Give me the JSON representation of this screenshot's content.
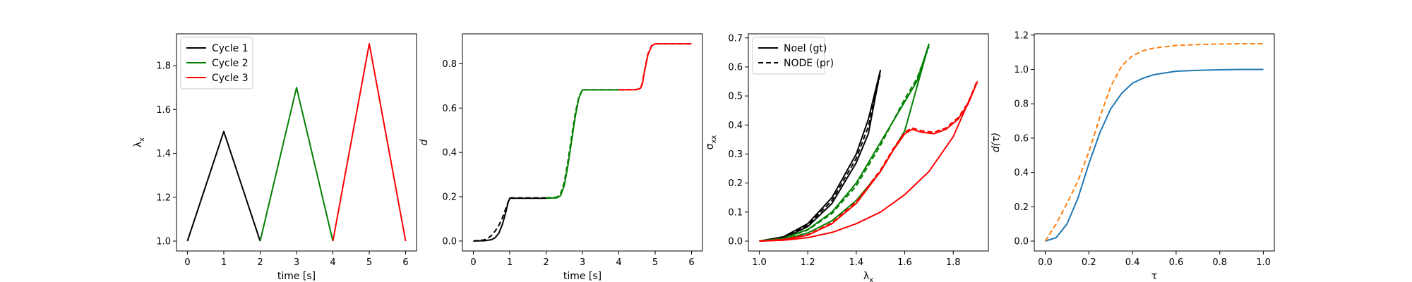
{
  "chart_data": [
    {
      "type": "line",
      "xlabel": "time [s]",
      "ylabel": "λ",
      "ylabel_sub": "x",
      "xlim": [
        -0.3,
        6.3
      ],
      "ylim": [
        0.955,
        1.945
      ],
      "xticks": [
        0,
        1,
        2,
        3,
        4,
        5,
        6
      ],
      "yticks": [
        1.0,
        1.2,
        1.4,
        1.6,
        1.8
      ],
      "ytick_labels": [
        "1.0",
        "1.2",
        "1.4",
        "1.6",
        "1.8"
      ],
      "legend": "top-left",
      "series": [
        {
          "name": "Cycle 1",
          "color": "#000000",
          "style": "solid",
          "x": [
            0,
            1,
            2
          ],
          "y": [
            1.0,
            1.5,
            1.0
          ]
        },
        {
          "name": "Cycle 2",
          "color": "#008000",
          "style": "solid",
          "x": [
            2,
            3,
            4
          ],
          "y": [
            1.0,
            1.7,
            1.0
          ]
        },
        {
          "name": "Cycle 3",
          "color": "#ff0000",
          "style": "solid",
          "x": [
            4,
            5,
            6
          ],
          "y": [
            1.0,
            1.9,
            1.0
          ]
        }
      ]
    },
    {
      "type": "line",
      "xlabel": "time [s]",
      "ylabel": "d",
      "ylabel_italic": true,
      "xlim": [
        -0.3,
        6.3
      ],
      "ylim": [
        -0.045,
        0.935
      ],
      "xticks": [
        0,
        1,
        2,
        3,
        4,
        5,
        6
      ],
      "yticks": [
        0.0,
        0.2,
        0.4,
        0.6,
        0.8
      ],
      "ytick_labels": [
        "0.0",
        "0.2",
        "0.4",
        "0.6",
        "0.8"
      ],
      "legend": "none",
      "series": [
        {
          "color": "#000000",
          "style": "solid",
          "x": [
            0,
            0.3,
            0.5,
            0.6,
            0.7,
            0.8,
            0.9,
            0.95,
            1.0,
            1.5,
            2.0
          ],
          "y": [
            0,
            0.001,
            0.006,
            0.015,
            0.035,
            0.075,
            0.135,
            0.17,
            0.193,
            0.193,
            0.193
          ]
        },
        {
          "color": "#000000",
          "style": "dashed",
          "x": [
            0,
            0.3,
            0.4,
            0.5,
            0.6,
            0.7,
            0.8,
            0.9,
            1.0,
            1.5,
            2.0
          ],
          "y": [
            0,
            0.005,
            0.012,
            0.025,
            0.045,
            0.07,
            0.105,
            0.15,
            0.195,
            0.195,
            0.195
          ]
        },
        {
          "color": "#008000",
          "style": "solid",
          "x": [
            2.0,
            2.3,
            2.4,
            2.5,
            2.6,
            2.7,
            2.8,
            2.9,
            3.0,
            3.5,
            4.0
          ],
          "y": [
            0.193,
            0.195,
            0.205,
            0.25,
            0.34,
            0.45,
            0.56,
            0.645,
            0.682,
            0.682,
            0.682
          ]
        },
        {
          "color": "#008000",
          "style": "dashed",
          "x": [
            2.0,
            2.3,
            2.4,
            2.5,
            2.6,
            2.7,
            2.8,
            2.9,
            3.0,
            3.5,
            4.0
          ],
          "y": [
            0.195,
            0.198,
            0.215,
            0.265,
            0.36,
            0.47,
            0.575,
            0.65,
            0.683,
            0.683,
            0.683
          ]
        },
        {
          "color": "#ff0000",
          "style": "solid",
          "x": [
            4.0,
            4.5,
            4.6,
            4.65,
            4.7,
            4.8,
            4.9,
            5.0,
            5.5,
            6.0
          ],
          "y": [
            0.682,
            0.683,
            0.69,
            0.71,
            0.76,
            0.84,
            0.88,
            0.89,
            0.89,
            0.89
          ]
        },
        {
          "color": "#ff0000",
          "style": "dashed",
          "x": [
            4.0,
            4.5,
            4.6,
            4.65,
            4.7,
            4.8,
            4.9,
            5.0,
            5.5,
            6.0
          ],
          "y": [
            0.683,
            0.684,
            0.692,
            0.715,
            0.765,
            0.845,
            0.882,
            0.89,
            0.89,
            0.89
          ]
        }
      ]
    },
    {
      "type": "line",
      "xlabel": "λ",
      "xlabel_sub": "x",
      "ylabel": "σ",
      "ylabel_sub": "xx",
      "xlim": [
        0.955,
        1.945
      ],
      "ylim": [
        -0.034,
        0.714
      ],
      "xticks": [
        1.0,
        1.2,
        1.4,
        1.6,
        1.8
      ],
      "xtick_labels": [
        "1.0",
        "1.2",
        "1.4",
        "1.6",
        "1.8"
      ],
      "yticks": [
        0.0,
        0.1,
        0.2,
        0.3,
        0.4,
        0.5,
        0.6,
        0.7
      ],
      "ytick_labels": [
        "0.0",
        "0.1",
        "0.2",
        "0.3",
        "0.4",
        "0.5",
        "0.6",
        "0.7"
      ],
      "legend": "top-left",
      "legend_entries": [
        {
          "name": "Noel (gt)",
          "color": "#000000",
          "style": "solid"
        },
        {
          "name": "NODE (pr)",
          "color": "#000000",
          "style": "dashed"
        }
      ],
      "series": [
        {
          "color": "#000000",
          "style": "solid",
          "x": [
            1.0,
            1.1,
            1.2,
            1.3,
            1.4,
            1.45,
            1.5
          ],
          "y": [
            0.0,
            0.015,
            0.06,
            0.15,
            0.3,
            0.42,
            0.59
          ]
        },
        {
          "color": "#000000",
          "style": "solid",
          "x": [
            1.0,
            1.1,
            1.2,
            1.3,
            1.4,
            1.45,
            1.5
          ],
          "y": [
            0.0,
            0.01,
            0.05,
            0.13,
            0.27,
            0.37,
            0.59
          ]
        },
        {
          "color": "#000000",
          "style": "dashed",
          "x": [
            1.0,
            1.1,
            1.2,
            1.3,
            1.4,
            1.45,
            1.5
          ],
          "y": [
            0.0,
            0.012,
            0.055,
            0.14,
            0.285,
            0.395,
            0.58
          ]
        },
        {
          "color": "#008000",
          "style": "solid",
          "x": [
            1.0,
            1.1,
            1.2,
            1.3,
            1.4,
            1.5,
            1.6,
            1.65,
            1.7
          ],
          "y": [
            0.0,
            0.01,
            0.04,
            0.1,
            0.2,
            0.34,
            0.48,
            0.55,
            0.68
          ]
        },
        {
          "color": "#008000",
          "style": "solid",
          "x": [
            1.0,
            1.1,
            1.2,
            1.3,
            1.4,
            1.5,
            1.6,
            1.7
          ],
          "y": [
            0.0,
            0.006,
            0.028,
            0.07,
            0.14,
            0.24,
            0.38,
            0.68
          ]
        },
        {
          "color": "#008000",
          "style": "dashed",
          "x": [
            1.0,
            1.1,
            1.2,
            1.3,
            1.4,
            1.5,
            1.6,
            1.65,
            1.7
          ],
          "y": [
            0.0,
            0.009,
            0.038,
            0.095,
            0.19,
            0.33,
            0.49,
            0.56,
            0.67
          ]
        },
        {
          "color": "#ff0000",
          "style": "solid",
          "x": [
            1.0,
            1.1,
            1.2,
            1.3,
            1.4,
            1.5,
            1.55,
            1.6,
            1.63,
            1.67,
            1.72,
            1.77,
            1.82,
            1.86,
            1.9
          ],
          "y": [
            0.0,
            0.005,
            0.02,
            0.06,
            0.13,
            0.24,
            0.31,
            0.37,
            0.385,
            0.375,
            0.37,
            0.385,
            0.42,
            0.47,
            0.55
          ]
        },
        {
          "color": "#ff0000",
          "style": "dashed",
          "x": [
            1.0,
            1.1,
            1.2,
            1.3,
            1.4,
            1.5,
            1.55,
            1.6,
            1.63,
            1.67,
            1.72,
            1.77,
            1.82,
            1.86,
            1.9
          ],
          "y": [
            0.0,
            0.006,
            0.022,
            0.063,
            0.135,
            0.245,
            0.315,
            0.375,
            0.39,
            0.38,
            0.375,
            0.39,
            0.425,
            0.475,
            0.555
          ]
        },
        {
          "color": "#ff0000",
          "style": "solid",
          "x": [
            1.0,
            1.1,
            1.2,
            1.3,
            1.4,
            1.5,
            1.6,
            1.7,
            1.8,
            1.9
          ],
          "y": [
            0.0,
            0.003,
            0.012,
            0.03,
            0.06,
            0.1,
            0.16,
            0.24,
            0.36,
            0.55
          ]
        }
      ]
    },
    {
      "type": "line",
      "xlabel": "τ",
      "ylabel": "d(τ)",
      "ylabel_italic": true,
      "xlim": [
        -0.05,
        1.05
      ],
      "ylim": [
        -0.0575,
        1.2075
      ],
      "xticks": [
        0.0,
        0.2,
        0.4,
        0.6,
        0.8,
        1.0
      ],
      "xtick_labels": [
        "0.0",
        "0.2",
        "0.4",
        "0.6",
        "0.8",
        "1.0"
      ],
      "yticks": [
        0.0,
        0.2,
        0.4,
        0.6,
        0.8,
        1.0,
        1.2
      ],
      "ytick_labels": [
        "0.0",
        "0.2",
        "0.4",
        "0.6",
        "0.8",
        "1.0",
        "1.2"
      ],
      "legend": "none",
      "series": [
        {
          "color": "#1f77b4",
          "style": "solid",
          "x": [
            0.0,
            0.05,
            0.1,
            0.15,
            0.2,
            0.25,
            0.3,
            0.35,
            0.4,
            0.45,
            0.5,
            0.6,
            0.7,
            0.8,
            0.9,
            1.0
          ],
          "y": [
            0.0,
            0.02,
            0.1,
            0.25,
            0.45,
            0.63,
            0.77,
            0.86,
            0.92,
            0.95,
            0.97,
            0.99,
            0.995,
            0.998,
            1.0,
            1.0
          ]
        },
        {
          "color": "#ff7f0e",
          "style": "dashed",
          "x": [
            0.0,
            0.05,
            0.1,
            0.15,
            0.2,
            0.25,
            0.3,
            0.35,
            0.4,
            0.45,
            0.5,
            0.6,
            0.7,
            0.8,
            0.9,
            1.0
          ],
          "y": [
            0.0,
            0.1,
            0.22,
            0.35,
            0.52,
            0.72,
            0.9,
            1.02,
            1.08,
            1.11,
            1.125,
            1.14,
            1.145,
            1.148,
            1.15,
            1.15
          ]
        }
      ]
    }
  ]
}
